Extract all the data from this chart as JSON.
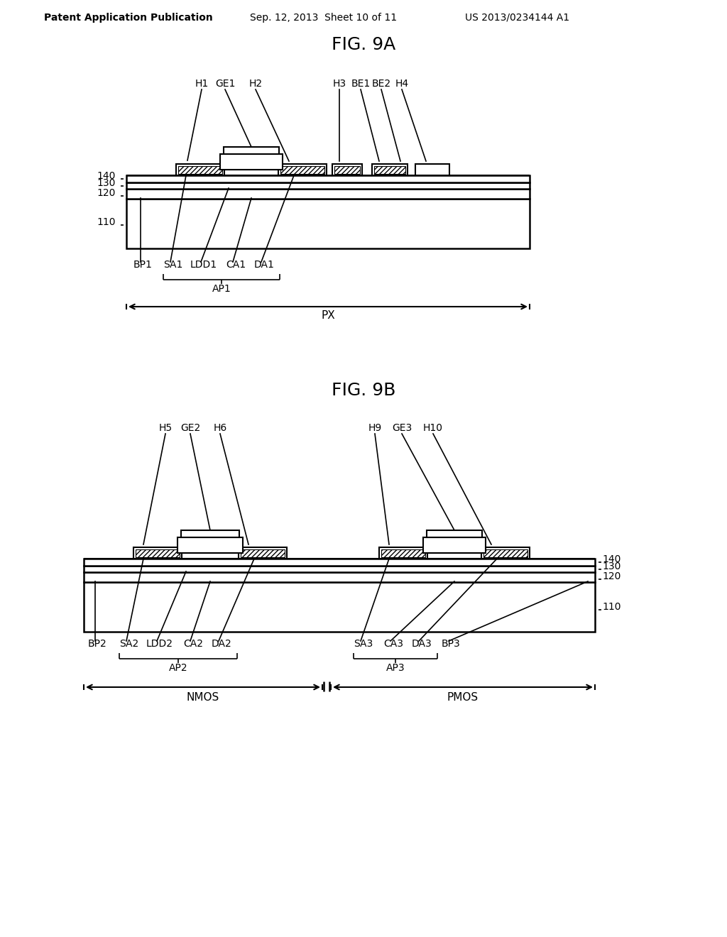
{
  "bg_color": "#ffffff",
  "header_left": "Patent Application Publication",
  "header_mid": "Sep. 12, 2013  Sheet 10 of 11",
  "header_right": "US 2013/0234144 A1",
  "fig9a_title": "FIG. 9A",
  "fig9b_title": "FIG. 9B"
}
